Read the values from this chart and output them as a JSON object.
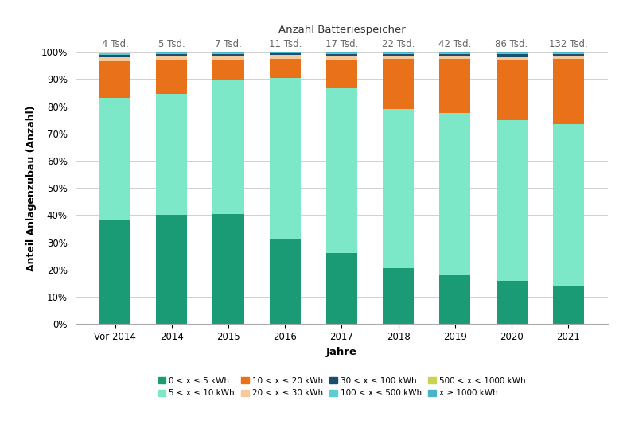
{
  "categories": [
    "Vor 2014",
    "2014",
    "2015",
    "2016",
    "2017",
    "2018",
    "2019",
    "2020",
    "2021"
  ],
  "top_labels": [
    "4 Tsd.",
    "5 Tsd.",
    "7 Tsd.",
    "11 Tsd.",
    "17 Tsd.",
    "22 Tsd.",
    "42 Tsd.",
    "86 Tsd.",
    "132 Tsd."
  ],
  "title": "Anzahl Batteriespeicher",
  "xlabel": "Jahre",
  "ylabel": "Anteil Anlagenzubau (Anzahl)",
  "series": [
    {
      "label": "0 < x ≤ 5 kWh",
      "color": "#1a9b75",
      "values": [
        38.5,
        40.0,
        40.5,
        31.0,
        26.0,
        20.5,
        18.0,
        16.0,
        14.0
      ]
    },
    {
      "label": "5 < x ≤ 10 kWh",
      "color": "#7de8c8",
      "values": [
        44.5,
        44.5,
        49.0,
        59.5,
        61.0,
        58.5,
        59.5,
        59.0,
        59.5
      ]
    },
    {
      "label": "10 < x ≤ 20 kWh",
      "color": "#e8711a",
      "values": [
        13.5,
        12.5,
        7.5,
        7.0,
        10.0,
        18.5,
        20.0,
        22.0,
        24.0
      ]
    },
    {
      "label": "20 < x ≤ 30 kWh",
      "color": "#f5c99a",
      "values": [
        1.5,
        1.5,
        1.5,
        1.5,
        1.5,
        1.0,
        1.0,
        1.0,
        1.0
      ]
    },
    {
      "label": "30 < x ≤ 100 kWh",
      "color": "#1a4f6e",
      "values": [
        1.0,
        0.8,
        0.8,
        0.5,
        0.8,
        0.8,
        0.8,
        1.2,
        0.8
      ]
    },
    {
      "label": "100 < x ≤ 500 kWh",
      "color": "#5bcfcf",
      "values": [
        0.4,
        0.4,
        0.4,
        0.3,
        0.5,
        0.5,
        0.5,
        0.6,
        0.5
      ]
    },
    {
      "label": "500 < x < 1000 kWh",
      "color": "#c8d44e",
      "values": [
        0.05,
        0.15,
        0.15,
        0.1,
        0.1,
        0.1,
        0.1,
        0.1,
        0.1
      ]
    },
    {
      "label": "x ≥ 1000 kWh",
      "color": "#4ab3c8",
      "values": [
        0.05,
        0.1,
        0.1,
        0.1,
        0.1,
        0.1,
        0.1,
        0.1,
        0.1
      ]
    }
  ],
  "ylim": [
    0,
    100
  ],
  "yticks": [
    0,
    10,
    20,
    30,
    40,
    50,
    60,
    70,
    80,
    90,
    100
  ],
  "ytick_labels": [
    "0%",
    "10%",
    "20%",
    "30%",
    "40%",
    "50%",
    "60%",
    "70%",
    "80%",
    "90%",
    "100%"
  ],
  "background_color": "#ffffff",
  "grid_color": "#d0d0d0",
  "figsize": [
    7.88,
    5.43
  ],
  "dpi": 100
}
